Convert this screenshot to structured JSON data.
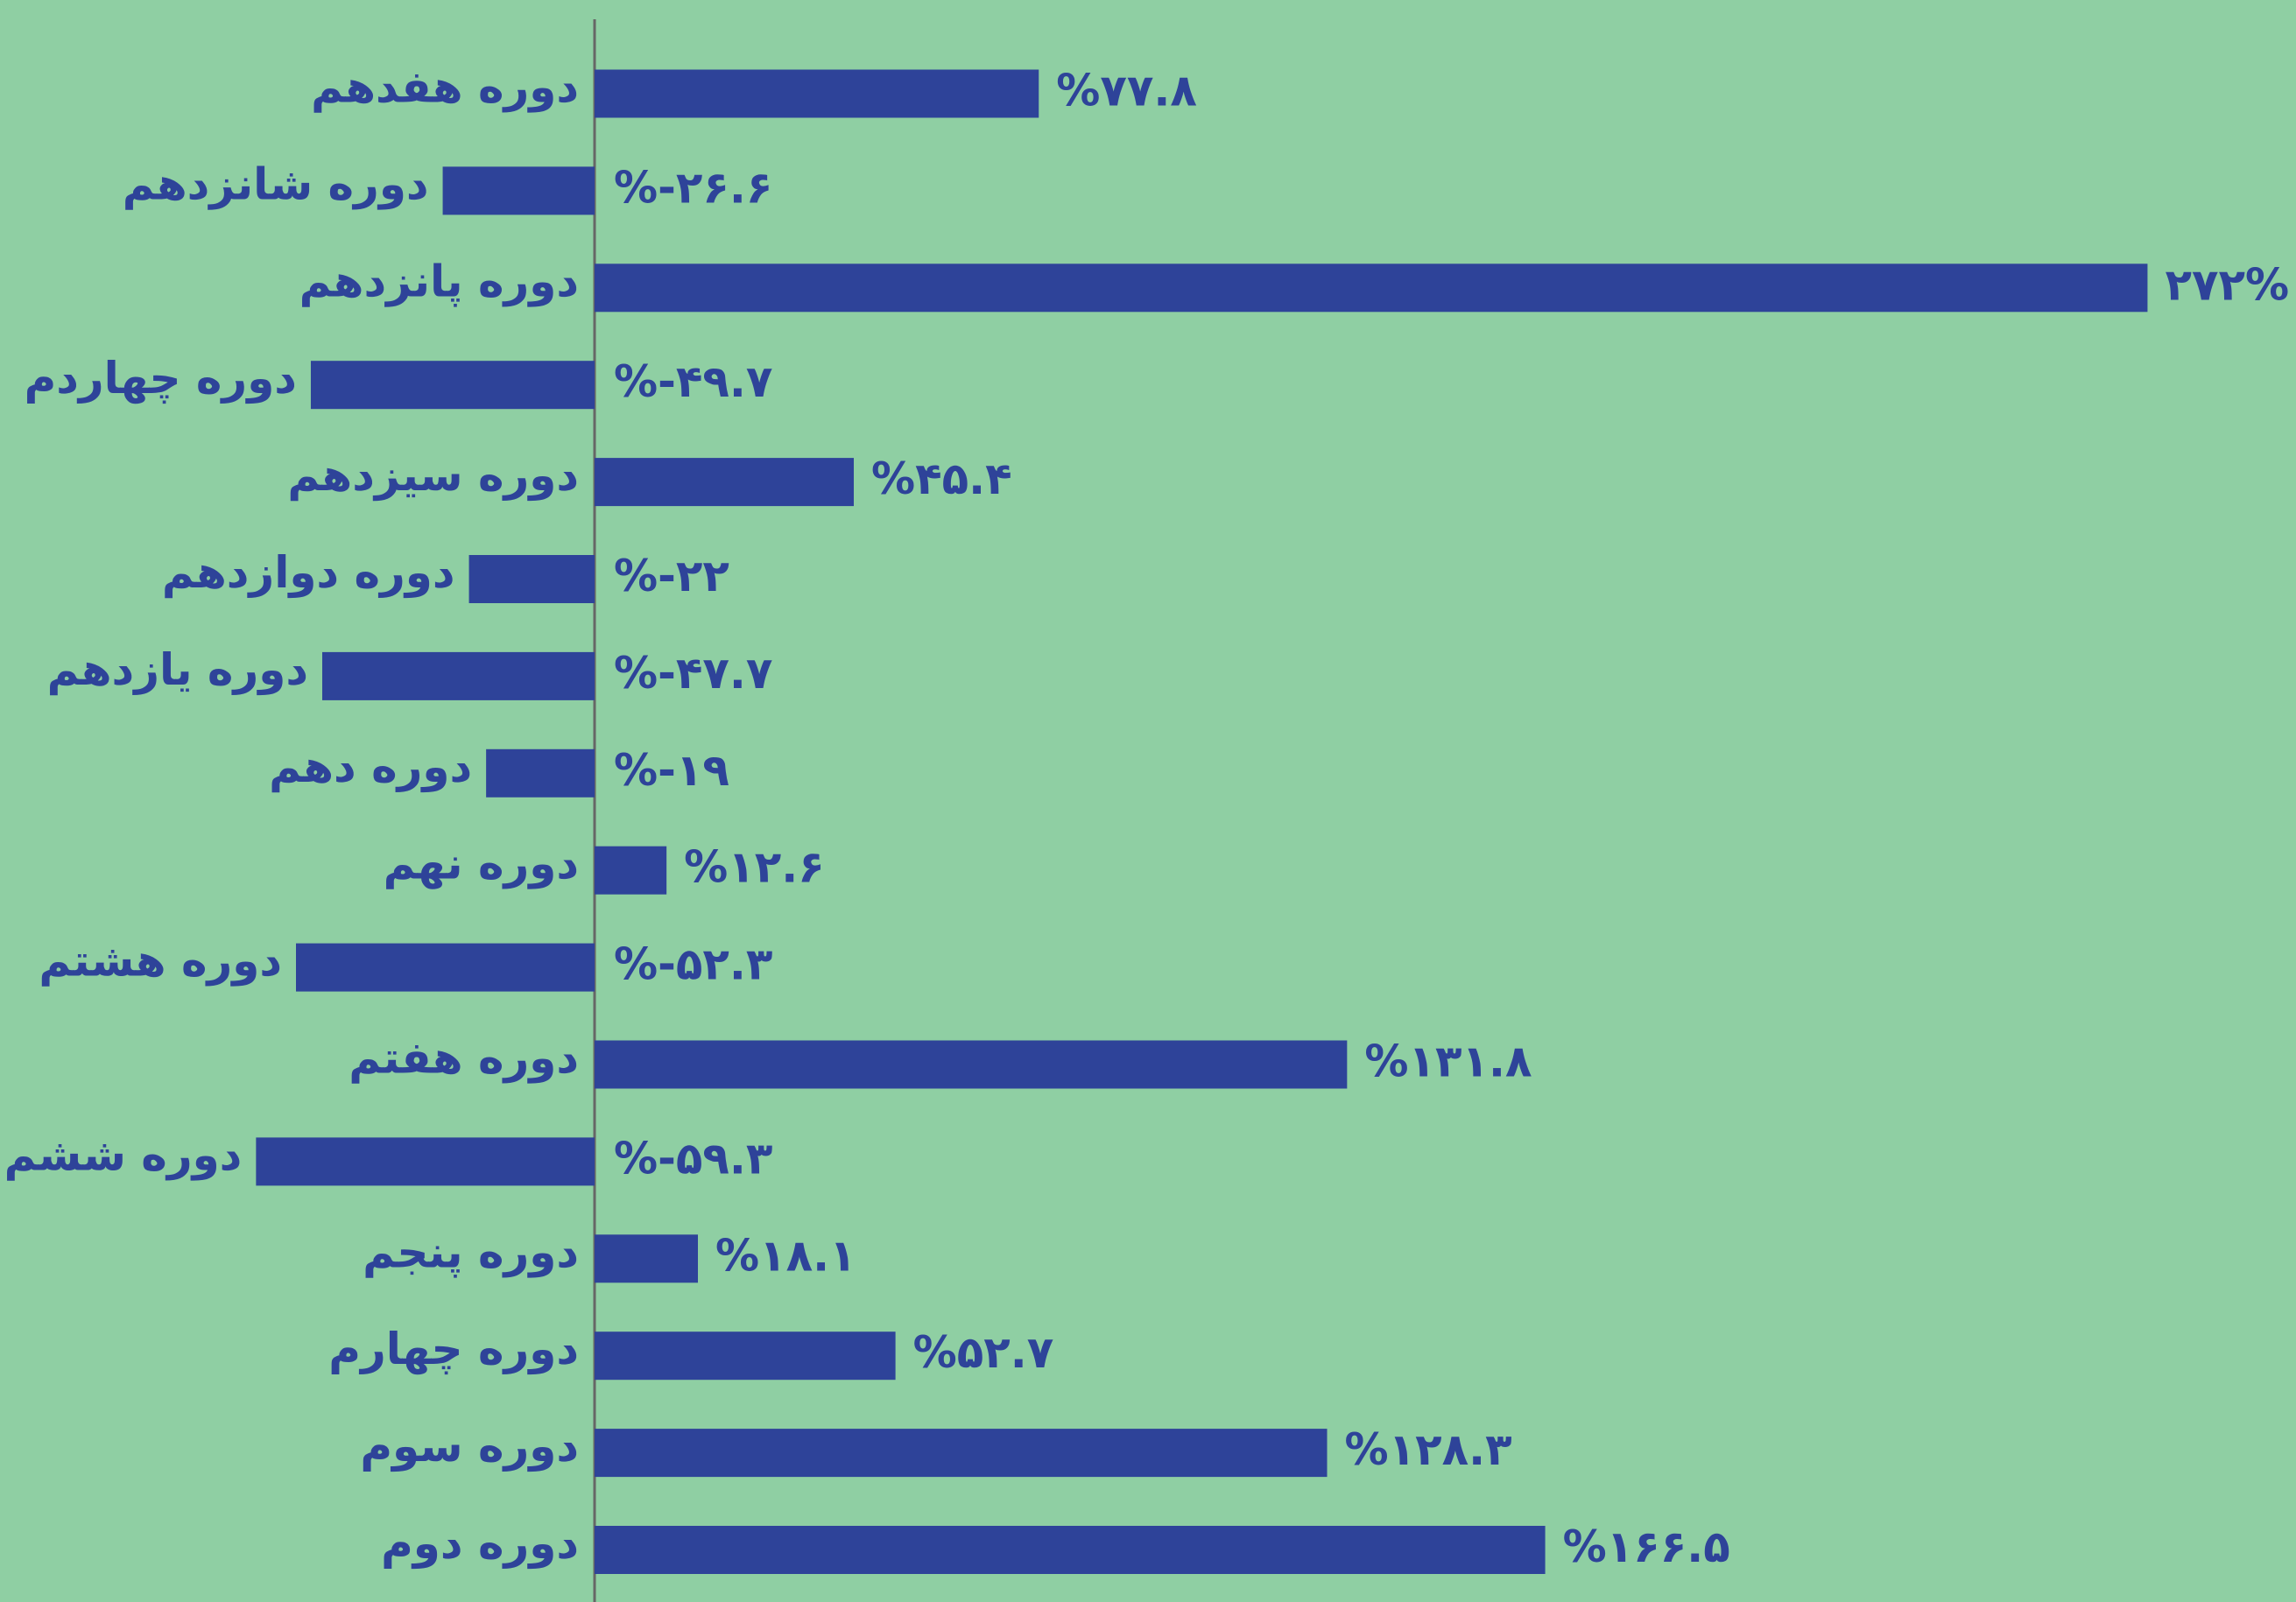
{
  "chart_data": {
    "type": "bar",
    "orientation": "horizontal",
    "color": "#2e4399",
    "categories": [
      "دوره هفدهم",
      "دوره شانزدهم",
      "دوره پانزدهم",
      "دوره چهاردم",
      "دوره سیزدهم",
      "دوره دوازدهم",
      "دوره یازدهم",
      "دوره دهم",
      "دوره نهم",
      "دوره هشتم",
      "دوره هفتم",
      "دوره ششم",
      "دوره پنجم",
      "دوره چهارم",
      "دوره سوم",
      "دوره دوم"
    ],
    "values": [
      77.8,
      -26.6,
      272,
      -49.7,
      45.4,
      -22,
      -47.7,
      -19,
      12.6,
      -52.3,
      131.8,
      -59.3,
      18.1,
      52.7,
      128.3,
      166.5
    ],
    "value_labels": [
      "%۷۷.۸",
      "%-۲۶.۶",
      "۲۷۲%",
      "%-۴۹.۷",
      "%۴۵.۴",
      "%-۲۲",
      "%-۴۷.۷",
      "%-۱۹",
      "%۱۲.۶",
      "%-۵۲.۳",
      "%۱۳۱.۸",
      "%-۵۹.۳",
      "%۱۸.۱",
      "%۵۲.۷",
      "%۱۲۸.۳",
      "%۱۶۶.۵"
    ]
  }
}
